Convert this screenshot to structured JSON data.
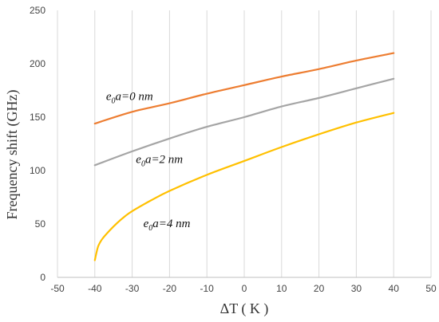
{
  "chart_data": {
    "type": "line",
    "title": "",
    "xlabel": "ΔT ( K )",
    "ylabel": "Frequency shift (GHz)",
    "xlim": [
      -50,
      50
    ],
    "ylim": [
      0,
      250
    ],
    "xticks": [
      -50,
      -40,
      -30,
      -20,
      -10,
      0,
      10,
      20,
      30,
      40,
      50
    ],
    "yticks": [
      0,
      50,
      100,
      150,
      200,
      250
    ],
    "grid": "vertical",
    "legend": "none",
    "series": [
      {
        "color": "#ED7D31",
        "x": [
          -40,
          -30,
          -20,
          -10,
          0,
          10,
          20,
          30,
          40
        ],
        "y": [
          144,
          155,
          163,
          172,
          180,
          188,
          195,
          203,
          210
        ]
      },
      {
        "color": "#A5A5A5",
        "x": [
          -40,
          -30,
          -20,
          -10,
          0,
          10,
          20,
          30,
          40
        ],
        "y": [
          105,
          118,
          130,
          141,
          150,
          160,
          168,
          177,
          186
        ]
      },
      {
        "color": "#FFC000",
        "x": [
          -40,
          -39.5,
          -39,
          -38,
          -36,
          -34,
          -32,
          -30,
          -25,
          -20,
          -10,
          0,
          10,
          20,
          30,
          40
        ],
        "y": [
          16,
          24,
          30,
          36,
          44,
          51,
          57,
          62,
          72,
          81,
          96,
          109,
          122,
          134,
          145,
          154
        ]
      }
    ],
    "annotations": [
      {
        "main": "e",
        "sub": "0",
        "rest": "a=0 nm",
        "x": -37,
        "y": 166
      },
      {
        "main": "e",
        "sub": "0",
        "rest": "a=2 nm",
        "x": -29,
        "y": 107
      },
      {
        "main": "e",
        "sub": "0",
        "rest": "a=4 nm",
        "x": -27,
        "y": 47
      }
    ]
  }
}
